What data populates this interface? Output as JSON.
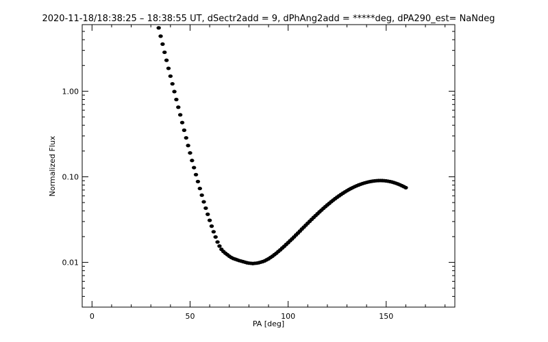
{
  "chart_data": {
    "type": "scatter",
    "title": "2020-11-18/18:38:25 – 18:38:55 UT, dSectr2add = 9, dPhAng2add = *****deg, dPA290_est=  NaNdeg",
    "xlabel": "PA [deg]",
    "ylabel": "Normalized Flux",
    "xlim": [
      -5,
      185
    ],
    "ylim": [
      0.003,
      6
    ],
    "y_scale": "log",
    "x_ticks": [
      0,
      50,
      100,
      150
    ],
    "x_tick_labels": [
      "0",
      "50",
      "100",
      "150"
    ],
    "y_ticks": [
      0.01,
      0.1,
      1.0
    ],
    "y_tick_labels": [
      "0.01",
      "0.10",
      "1.00"
    ],
    "grid": false,
    "series": [
      {
        "marker": "filled-circle",
        "color": "#000000",
        "x": [
          34,
          35,
          36,
          37,
          38,
          39,
          40,
          41,
          42,
          43,
          44,
          45,
          46,
          47,
          48,
          49,
          50,
          51,
          52,
          53,
          54,
          55,
          56,
          57,
          58,
          59,
          60,
          61,
          62,
          63,
          64,
          65,
          66,
          67,
          68,
          69,
          70,
          71,
          72,
          73,
          74,
          75,
          76,
          77,
          78,
          79,
          80,
          81,
          82,
          83,
          84,
          85,
          86,
          87,
          88,
          89,
          90,
          91,
          92,
          93,
          94,
          95,
          96,
          97,
          98,
          99,
          100,
          101,
          102,
          103,
          104,
          105,
          106,
          107,
          108,
          109,
          110,
          111,
          112,
          113,
          114,
          115,
          116,
          117,
          118,
          119,
          120,
          121,
          122,
          123,
          124,
          125,
          126,
          127,
          128,
          129,
          130,
          131,
          132,
          133,
          134,
          135,
          136,
          137,
          138,
          139,
          140,
          141,
          142,
          143,
          144,
          145,
          146,
          147,
          148,
          149,
          150,
          151,
          152,
          153,
          154,
          155,
          156,
          157,
          158,
          159,
          160
        ],
        "y": [
          5.5,
          4.4,
          3.55,
          2.85,
          2.3,
          1.85,
          1.5,
          1.22,
          0.99,
          0.8,
          0.65,
          0.53,
          0.43,
          0.35,
          0.285,
          0.232,
          0.19,
          0.155,
          0.128,
          0.106,
          0.088,
          0.073,
          0.061,
          0.051,
          0.043,
          0.0365,
          0.031,
          0.0265,
          0.0228,
          0.0198,
          0.0173,
          0.0155,
          0.0142,
          0.0134,
          0.0128,
          0.0123,
          0.0118,
          0.0114,
          0.0111,
          0.0109,
          0.0107,
          0.0105,
          0.01035,
          0.0102,
          0.01005,
          0.0099,
          0.0098,
          0.00975,
          0.0097,
          0.00975,
          0.0098,
          0.0099,
          0.01005,
          0.0102,
          0.0104,
          0.0107,
          0.011,
          0.0114,
          0.0118,
          0.0123,
          0.0128,
          0.0134,
          0.014,
          0.0147,
          0.0154,
          0.0162,
          0.017,
          0.0179,
          0.0188,
          0.0198,
          0.0209,
          0.022,
          0.0232,
          0.0245,
          0.0258,
          0.0272,
          0.0287,
          0.0302,
          0.0318,
          0.0335,
          0.0352,
          0.037,
          0.0389,
          0.0408,
          0.0428,
          0.0448,
          0.0469,
          0.049,
          0.0512,
          0.0534,
          0.0556,
          0.0578,
          0.06,
          0.0622,
          0.0644,
          0.0666,
          0.0688,
          0.0709,
          0.0729,
          0.0749,
          0.0768,
          0.0786,
          0.0803,
          0.0819,
          0.0834,
          0.0848,
          0.086,
          0.0871,
          0.0881,
          0.0889,
          0.0895,
          0.09,
          0.0903,
          0.0904,
          0.0903,
          0.09,
          0.0895,
          0.0888,
          0.0879,
          0.0868,
          0.0855,
          0.084,
          0.0824,
          0.0806,
          0.0787,
          0.0767,
          0.0746
        ]
      }
    ]
  }
}
